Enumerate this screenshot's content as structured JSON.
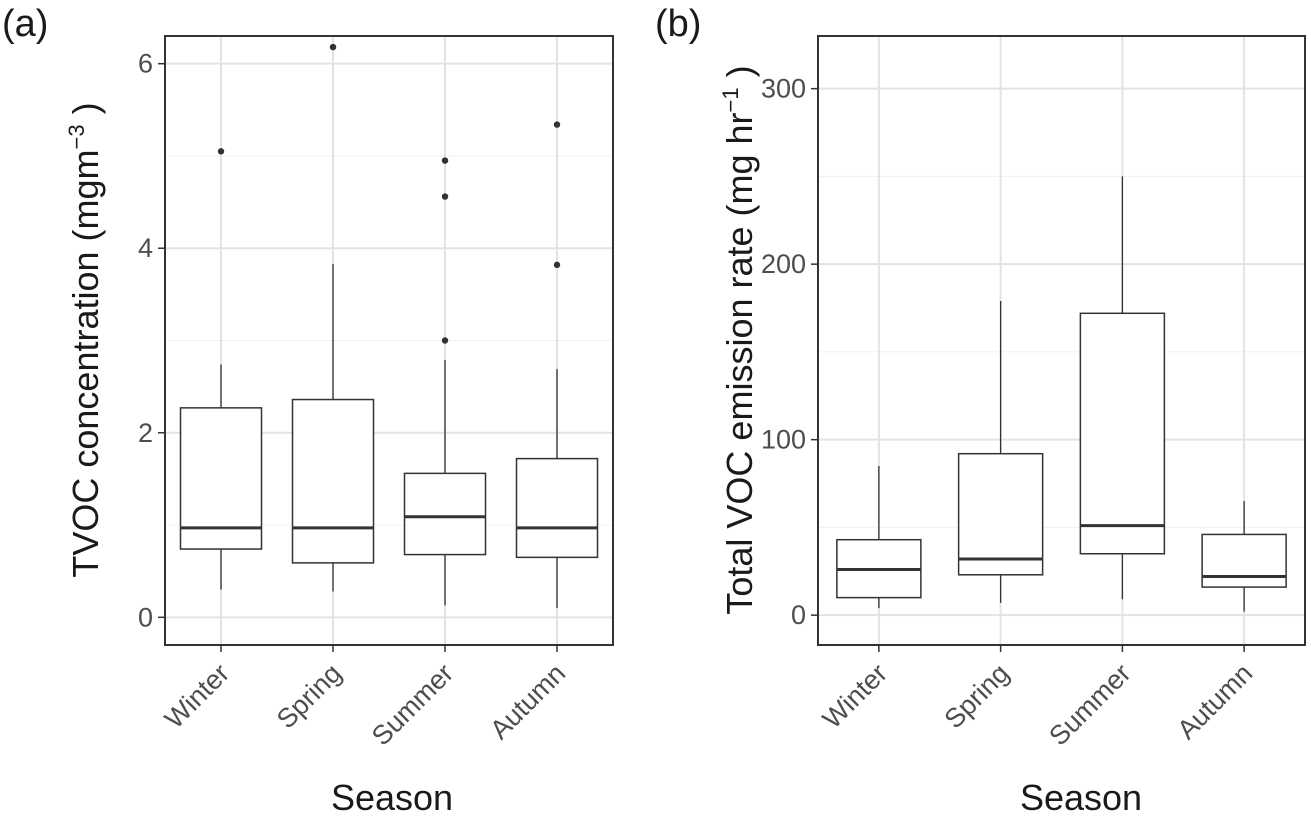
{
  "chart_data": [
    {
      "type": "box",
      "panel_tag": "(a)",
      "ylabel_main": "TVOC concentration (mgm",
      "ylabel_sup": "−3",
      "ylabel_close": ")",
      "xlabel": "Season",
      "categories": [
        "Winter",
        "Spring",
        "Summer",
        "Autumn"
      ],
      "ylim": [
        -0.3,
        6.3
      ],
      "yticks": [
        0,
        2,
        4,
        6
      ],
      "yticks_text": [
        "0",
        "2",
        "4",
        "6"
      ],
      "grid": true,
      "boxes": [
        {
          "whisker_low": 0.3,
          "q1": 0.74,
          "median": 0.97,
          "q3": 2.27,
          "whisker_high": 2.74,
          "outliers": [
            5.05
          ]
        },
        {
          "whisker_low": 0.28,
          "q1": 0.59,
          "median": 0.97,
          "q3": 2.36,
          "whisker_high": 3.83,
          "outliers": [
            6.18
          ]
        },
        {
          "whisker_low": 0.13,
          "q1": 0.68,
          "median": 1.09,
          "q3": 1.56,
          "whisker_high": 2.79,
          "outliers": [
            3.0,
            4.56,
            4.95
          ]
        },
        {
          "whisker_low": 0.1,
          "q1": 0.65,
          "median": 0.97,
          "q3": 1.72,
          "whisker_high": 2.69,
          "outliers": [
            3.82,
            5.34
          ]
        }
      ]
    },
    {
      "type": "box",
      "panel_tag": "(b)",
      "ylabel_main": "Total VOC emission rate (mg hr",
      "ylabel_sup": "−1",
      "ylabel_close": ")",
      "xlabel": "Season",
      "categories": [
        "Winter",
        "Spring",
        "Summer",
        "Autumn"
      ],
      "ylim": [
        -17,
        330
      ],
      "yticks": [
        0,
        100,
        200,
        300
      ],
      "yticks_text": [
        "0",
        "100",
        "200",
        "300"
      ],
      "grid": true,
      "boxes": [
        {
          "whisker_low": 4,
          "q1": 10,
          "median": 26,
          "q3": 43,
          "whisker_high": 85,
          "outliers": []
        },
        {
          "whisker_low": 7,
          "q1": 23,
          "median": 32,
          "q3": 92,
          "whisker_high": 179,
          "outliers": []
        },
        {
          "whisker_low": 9,
          "q1": 35,
          "median": 51,
          "q3": 172,
          "whisker_high": 250,
          "outliers": []
        },
        {
          "whisker_low": 2,
          "q1": 16,
          "median": 22,
          "q3": 46,
          "whisker_high": 65,
          "outliers": []
        }
      ]
    }
  ]
}
